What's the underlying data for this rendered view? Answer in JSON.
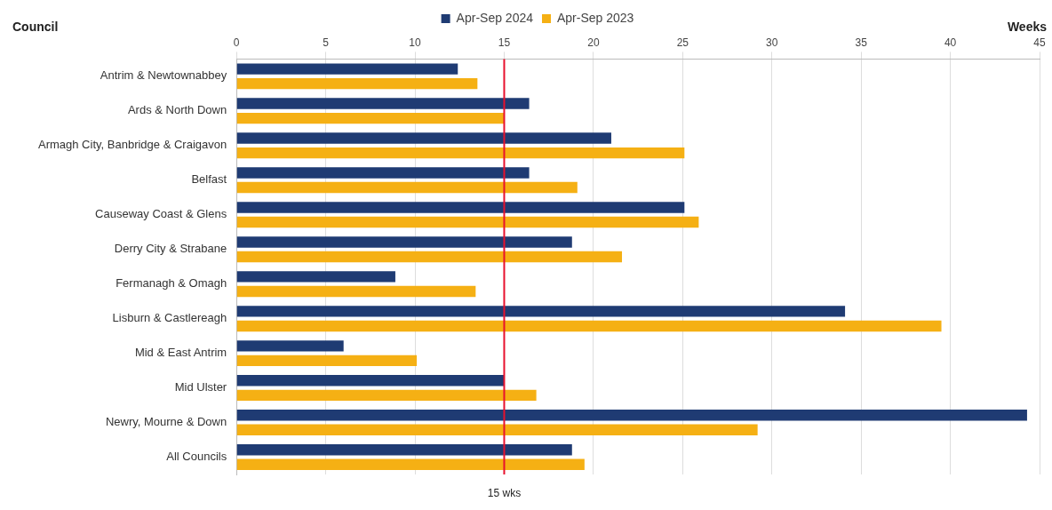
{
  "chart_data": {
    "type": "bar",
    "orientation": "horizontal",
    "ylabel": "Council",
    "xlabel": "Weeks",
    "categories": [
      "Antrim & Newtownabbey",
      "Ards & North Down",
      "Armagh City, Banbridge & Craigavon",
      "Belfast",
      "Causeway Coast & Glens",
      "Derry City & Strabane",
      "Fermanagh & Omagh",
      "Lisburn & Castlereagh",
      "Mid & East Antrim",
      "Mid Ulster",
      "Newry, Mourne & Down",
      "All Councils"
    ],
    "series": [
      {
        "name": "Apr-Sep 2024",
        "color": "#1f3b73",
        "values": [
          12.4,
          16.4,
          21.0,
          16.4,
          25.1,
          18.8,
          8.9,
          34.1,
          6.0,
          15.0,
          44.3,
          18.8
        ]
      },
      {
        "name": "Apr-Sep 2023",
        "color": "#f5b014",
        "values": [
          13.5,
          15.0,
          25.1,
          19.1,
          25.9,
          21.6,
          13.4,
          39.5,
          10.1,
          16.8,
          29.2,
          19.5
        ]
      }
    ],
    "xlim": [
      0,
      45
    ],
    "xticks": [
      0,
      5,
      10,
      15,
      20,
      25,
      30,
      35,
      40,
      45
    ],
    "grid": "x",
    "legend": "top",
    "ref_lines": [
      {
        "axis": "x",
        "value": 15,
        "label": "15 wks",
        "color": "#e8112d"
      }
    ]
  }
}
